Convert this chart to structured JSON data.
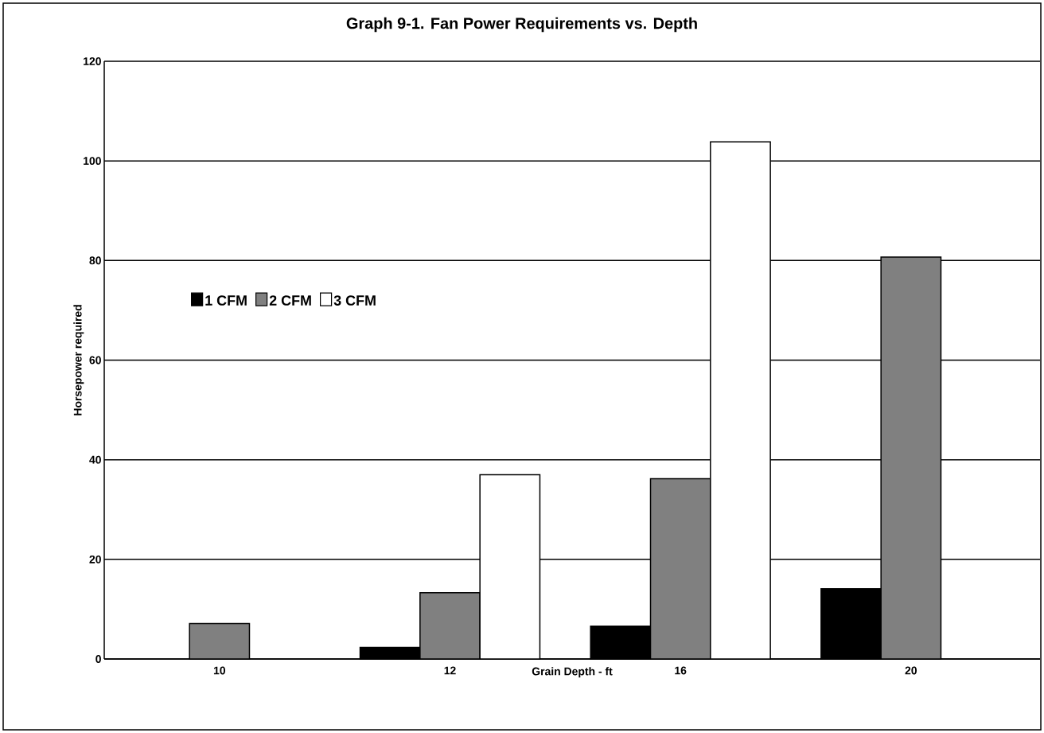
{
  "chart_data": {
    "type": "bar",
    "title": "Graph 9-1. Fan Power Requirements vs. Depth",
    "xlabel": "Grain Depth - ft",
    "ylabel": "Horsepower required",
    "categories": [
      "10",
      "12",
      "16",
      "20"
    ],
    "series": [
      {
        "name": "1 CFM",
        "color": "#000000",
        "values": [
          null,
          2.3,
          6.6,
          14.1
        ]
      },
      {
        "name": "2 CFM",
        "color": "#808080",
        "values": [
          7.1,
          13.3,
          36.2,
          80.7
        ]
      },
      {
        "name": "3 CFM",
        "color": "#ffffff",
        "values": [
          null,
          37.0,
          103.8,
          null
        ]
      }
    ],
    "ylim": [
      0,
      120
    ],
    "yticks": [
      0,
      20,
      40,
      60,
      80,
      100,
      120
    ],
    "grid": "y",
    "legend": "left"
  }
}
